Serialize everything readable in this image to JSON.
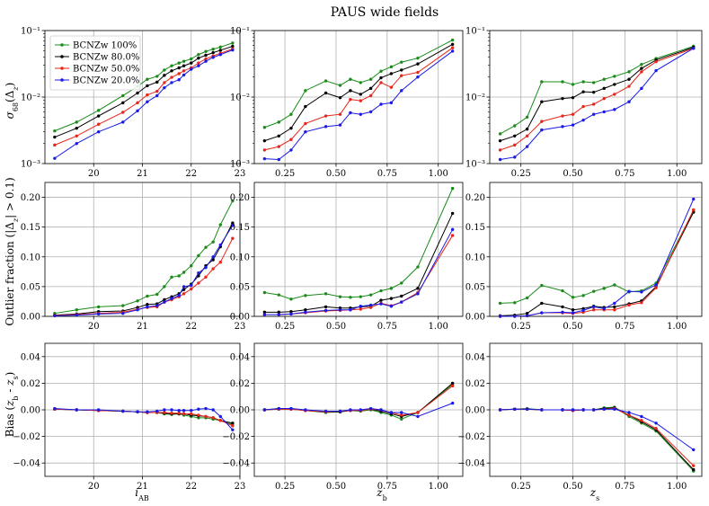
{
  "title": "PAUS wide fields",
  "colors": {
    "BCNZw 100%": "#1a8c1a",
    "BCNZw 80.0%": "#000000",
    "BCNZw 50.0%": "#e8251a",
    "BCNZw 20.0%": "#1a1ae8"
  },
  "legend": [
    "BCNZw 100%",
    "BCNZw 80.0%",
    "BCNZw 50.0%",
    "BCNZw 20.0%"
  ],
  "rows": {
    "sigma": {
      "ylabel": "σ68(Δz)",
      "ticks": [
        "10⁻³",
        "10⁻²",
        "10⁻¹"
      ]
    },
    "outlier": {
      "ylabel": "Outlier fraction (|Δz| > 0.1)",
      "ticks": [
        "0.00",
        "0.05",
        "0.10",
        "0.15",
        "0.20"
      ]
    },
    "bias": {
      "ylabel": "Bias (zb - zs)",
      "ticks": [
        "−0.04",
        "−0.02",
        "0.00",
        "0.02",
        "0.04"
      ]
    }
  },
  "cols": {
    "iab": {
      "xlabel": "iAB",
      "ticks": [
        "20",
        "21",
        "22",
        "23"
      ]
    },
    "zb": {
      "xlabel": "zb",
      "ticks": [
        "0.25",
        "0.50",
        "0.75",
        "1.00"
      ]
    },
    "zs": {
      "xlabel": "zs",
      "ticks": [
        "0.25",
        "0.50",
        "0.75",
        "1.00"
      ]
    }
  },
  "chart_data": [
    {
      "type": "line",
      "id": "sigma-iab",
      "xlim": [
        19,
        23
      ],
      "ylim": [
        0.001,
        0.1
      ],
      "yscale": "log",
      "x": [
        19.2,
        19.65,
        20.1,
        20.6,
        20.9,
        21.1,
        21.3,
        21.45,
        21.6,
        21.75,
        21.85,
        22.0,
        22.15,
        22.3,
        22.45,
        22.6,
        22.85
      ],
      "series": [
        {
          "name": "BCNZw 100%",
          "values": [
            0.0031,
            0.0042,
            0.0063,
            0.0105,
            0.0145,
            0.0185,
            0.0205,
            0.0255,
            0.0295,
            0.0325,
            0.0345,
            0.0375,
            0.0435,
            0.0485,
            0.0525,
            0.0565,
            0.065
          ]
        },
        {
          "name": "BCNZw 80.0%",
          "values": [
            0.0025,
            0.0034,
            0.0052,
            0.0082,
            0.0115,
            0.0148,
            0.0168,
            0.0212,
            0.0248,
            0.0275,
            0.0295,
            0.0325,
            0.0385,
            0.0425,
            0.0465,
            0.0505,
            0.058
          ]
        },
        {
          "name": "BCNZw 50.0%",
          "values": [
            0.0019,
            0.0026,
            0.0039,
            0.0059,
            0.0082,
            0.0108,
            0.0122,
            0.0165,
            0.0198,
            0.0225,
            0.0248,
            0.0275,
            0.0325,
            0.0375,
            0.0415,
            0.0455,
            0.053
          ]
        },
        {
          "name": "BCNZw 20.0%",
          "values": [
            0.0012,
            0.002,
            0.003,
            0.0042,
            0.0062,
            0.0085,
            0.0105,
            0.0138,
            0.0165,
            0.0182,
            0.0215,
            0.0262,
            0.0295,
            0.0345,
            0.0395,
            0.0435,
            0.051
          ]
        }
      ]
    },
    {
      "type": "line",
      "id": "sigma-zb",
      "xlim": [
        0.1,
        1.12
      ],
      "ylim": [
        0.001,
        0.1
      ],
      "yscale": "log",
      "x": [
        0.15,
        0.22,
        0.28,
        0.35,
        0.45,
        0.52,
        0.57,
        0.62,
        0.67,
        0.72,
        0.77,
        0.82,
        0.9,
        1.07
      ],
      "series": [
        {
          "name": "BCNZw 100%",
          "values": [
            0.0035,
            0.0042,
            0.0055,
            0.0125,
            0.0175,
            0.015,
            0.0185,
            0.0165,
            0.0185,
            0.0245,
            0.0285,
            0.0335,
            0.0385,
            0.072
          ]
        },
        {
          "name": "BCNZw 80.0%",
          "values": [
            0.0022,
            0.0026,
            0.0034,
            0.0072,
            0.0115,
            0.0098,
            0.0125,
            0.011,
            0.0135,
            0.0195,
            0.0225,
            0.0255,
            0.0315,
            0.062
          ]
        },
        {
          "name": "BCNZw 50.0%",
          "values": [
            0.0016,
            0.0018,
            0.0023,
            0.004,
            0.0052,
            0.0055,
            0.0092,
            0.0088,
            0.0105,
            0.0165,
            0.014,
            0.021,
            0.0235,
            0.055
          ]
        },
        {
          "name": "BCNZw 20.0%",
          "values": [
            0.00118,
            0.00115,
            0.0016,
            0.003,
            0.0036,
            0.0038,
            0.0058,
            0.0055,
            0.006,
            0.0078,
            0.0082,
            0.0125,
            0.02,
            0.049
          ]
        }
      ]
    },
    {
      "type": "line",
      "id": "sigma-zs",
      "xlim": [
        0.1,
        1.12
      ],
      "ylim": [
        0.001,
        0.1
      ],
      "yscale": "log",
      "x": [
        0.15,
        0.22,
        0.28,
        0.35,
        0.45,
        0.5,
        0.55,
        0.6,
        0.65,
        0.7,
        0.77,
        0.83,
        0.9,
        1.08
      ],
      "series": [
        {
          "name": "BCNZw 100%",
          "values": [
            0.0028,
            0.0037,
            0.005,
            0.017,
            0.017,
            0.0155,
            0.017,
            0.0165,
            0.0185,
            0.0205,
            0.024,
            0.031,
            0.038,
            0.058
          ]
        },
        {
          "name": "BCNZw 80.0%",
          "values": [
            0.0022,
            0.0026,
            0.0033,
            0.0085,
            0.0095,
            0.0098,
            0.012,
            0.0118,
            0.0135,
            0.0155,
            0.0185,
            0.027,
            0.036,
            0.056
          ]
        },
        {
          "name": "BCNZw 50.0%",
          "values": [
            0.0016,
            0.0019,
            0.0026,
            0.0043,
            0.0052,
            0.0055,
            0.0072,
            0.0078,
            0.0095,
            0.011,
            0.0145,
            0.024,
            0.034,
            0.054
          ]
        },
        {
          "name": "BCNZw 20.0%",
          "values": [
            0.00115,
            0.00125,
            0.0018,
            0.0032,
            0.0036,
            0.0038,
            0.0045,
            0.0055,
            0.006,
            0.0065,
            0.0085,
            0.0135,
            0.025,
            0.054
          ]
        }
      ]
    },
    {
      "type": "line",
      "id": "outlier-iab",
      "xlim": [
        19,
        23
      ],
      "ylim": [
        0,
        0.225
      ],
      "x": [
        19.2,
        19.65,
        20.1,
        20.6,
        20.9,
        21.1,
        21.3,
        21.45,
        21.6,
        21.75,
        21.85,
        22.0,
        22.15,
        22.3,
        22.45,
        22.6,
        22.85
      ],
      "series": [
        {
          "name": "BCNZw 100%",
          "values": [
            0.005,
            0.011,
            0.016,
            0.018,
            0.026,
            0.034,
            0.037,
            0.05,
            0.066,
            0.068,
            0.074,
            0.085,
            0.102,
            0.116,
            0.125,
            0.154,
            0.194
          ]
        },
        {
          "name": "BCNZw 80.0%",
          "values": [
            0.002,
            0.004,
            0.008,
            0.009,
            0.015,
            0.02,
            0.021,
            0.028,
            0.033,
            0.038,
            0.045,
            0.054,
            0.068,
            0.085,
            0.095,
            0.117,
            0.157
          ]
        },
        {
          "name": "BCNZw 50.0%",
          "values": [
            0.0015,
            0.003,
            0.005,
            0.007,
            0.012,
            0.015,
            0.016,
            0.024,
            0.028,
            0.033,
            0.038,
            0.046,
            0.056,
            0.066,
            0.08,
            0.091,
            0.131
          ]
        },
        {
          "name": "BCNZw 20.0%",
          "values": [
            0.001,
            0.002,
            0.004,
            0.005,
            0.011,
            0.016,
            0.018,
            0.024,
            0.03,
            0.035,
            0.05,
            0.052,
            0.073,
            0.082,
            0.1,
            0.12,
            0.153
          ]
        }
      ]
    },
    {
      "type": "line",
      "id": "outlier-zb",
      "xlim": [
        0.1,
        1.12
      ],
      "ylim": [
        0,
        0.225
      ],
      "x": [
        0.15,
        0.22,
        0.28,
        0.35,
        0.45,
        0.52,
        0.57,
        0.62,
        0.67,
        0.72,
        0.77,
        0.82,
        0.9,
        1.07
      ],
      "series": [
        {
          "name": "BCNZw 100%",
          "values": [
            0.04,
            0.036,
            0.029,
            0.035,
            0.038,
            0.033,
            0.032,
            0.033,
            0.036,
            0.043,
            0.047,
            0.056,
            0.083,
            0.215
          ]
        },
        {
          "name": "BCNZw 80.0%",
          "values": [
            0.007,
            0.007,
            0.008,
            0.011,
            0.016,
            0.014,
            0.014,
            0.016,
            0.017,
            0.027,
            0.03,
            0.034,
            0.047,
            0.173
          ]
        },
        {
          "name": "BCNZw 50.0%",
          "values": [
            0.003,
            0.003,
            0.004,
            0.006,
            0.009,
            0.01,
            0.011,
            0.012,
            0.015,
            0.022,
            0.018,
            0.024,
            0.04,
            0.136
          ]
        },
        {
          "name": "BCNZw 20.0%",
          "values": [
            0.003,
            0.003,
            0.004,
            0.007,
            0.01,
            0.011,
            0.011,
            0.017,
            0.019,
            0.021,
            0.017,
            0.024,
            0.038,
            0.146
          ]
        }
      ]
    },
    {
      "type": "line",
      "id": "outlier-zs",
      "xlim": [
        0.1,
        1.12
      ],
      "ylim": [
        0,
        0.225
      ],
      "x": [
        0.15,
        0.22,
        0.28,
        0.35,
        0.45,
        0.5,
        0.55,
        0.6,
        0.65,
        0.7,
        0.77,
        0.83,
        0.9,
        1.08
      ],
      "series": [
        {
          "name": "BCNZw 100%",
          "values": [
            0.022,
            0.023,
            0.031,
            0.052,
            0.043,
            0.032,
            0.035,
            0.042,
            0.047,
            0.053,
            0.041,
            0.043,
            0.056,
            0.177
          ]
        },
        {
          "name": "BCNZw 80.0%",
          "values": [
            0.001,
            0.002,
            0.005,
            0.022,
            0.016,
            0.011,
            0.013,
            0.017,
            0.015,
            0.016,
            0.021,
            0.026,
            0.05,
            0.175
          ]
        },
        {
          "name": "BCNZw 50.0%",
          "values": [
            0.0,
            0.0,
            0.001,
            0.006,
            0.006,
            0.005,
            0.007,
            0.011,
            0.011,
            0.011,
            0.019,
            0.023,
            0.048,
            0.179
          ]
        },
        {
          "name": "BCNZw 20.0%",
          "values": [
            0.0,
            0.0,
            0.001,
            0.006,
            0.007,
            0.006,
            0.01,
            0.016,
            0.013,
            0.022,
            0.042,
            0.041,
            0.053,
            0.197
          ]
        }
      ]
    },
    {
      "type": "line",
      "id": "bias-iab",
      "xlim": [
        19,
        23
      ],
      "ylim": [
        -0.05,
        0.05
      ],
      "x": [
        19.2,
        19.65,
        20.1,
        20.6,
        20.9,
        21.1,
        21.3,
        21.45,
        21.6,
        21.75,
        21.85,
        22.0,
        22.15,
        22.3,
        22.45,
        22.6,
        22.85
      ],
      "series": [
        {
          "name": "BCNZw 100%",
          "values": [
            0.0005,
            0.0,
            -0.0005,
            -0.001,
            -0.0015,
            -0.002,
            -0.002,
            -0.003,
            -0.0035,
            -0.003,
            -0.004,
            -0.005,
            -0.006,
            -0.006,
            -0.007,
            -0.008,
            -0.011
          ]
        },
        {
          "name": "BCNZw 80.0%",
          "values": [
            0.0005,
            0.0,
            -0.0005,
            -0.001,
            -0.0015,
            -0.002,
            -0.002,
            -0.0025,
            -0.003,
            -0.003,
            -0.003,
            -0.004,
            -0.0045,
            -0.005,
            -0.006,
            -0.008,
            -0.01
          ]
        },
        {
          "name": "BCNZw 50.0%",
          "values": [
            0.0005,
            0.0,
            -0.0005,
            -0.001,
            -0.0015,
            -0.002,
            -0.002,
            -0.002,
            -0.0025,
            -0.0025,
            -0.003,
            -0.003,
            -0.004,
            -0.005,
            -0.006,
            -0.008,
            -0.012
          ]
        },
        {
          "name": "BCNZw 20.0%",
          "values": [
            0.001,
            0.0,
            0.0,
            -0.001,
            -0.0015,
            -0.0015,
            -0.001,
            0.0,
            0.0,
            -0.0005,
            -0.0005,
            -0.0005,
            0.0005,
            0.001,
            0.0,
            -0.005,
            -0.015
          ]
        }
      ]
    },
    {
      "type": "line",
      "id": "bias-zb",
      "xlim": [
        0.1,
        1.12
      ],
      "ylim": [
        -0.05,
        0.05
      ],
      "x": [
        0.15,
        0.22,
        0.28,
        0.35,
        0.45,
        0.52,
        0.57,
        0.62,
        0.67,
        0.72,
        0.77,
        0.82,
        0.9,
        1.07
      ],
      "series": [
        {
          "name": "BCNZw 100%",
          "values": [
            0.0,
            0.001,
            0.001,
            -0.0005,
            -0.002,
            -0.0015,
            -0.0005,
            -0.001,
            0.0,
            -0.002,
            -0.004,
            -0.007,
            -0.002,
            0.019
          ]
        },
        {
          "name": "BCNZw 80.0%",
          "values": [
            0.0,
            0.0005,
            0.0005,
            -0.0005,
            -0.0015,
            -0.0015,
            -0.0005,
            -0.0005,
            0.0005,
            -0.001,
            -0.003,
            -0.005,
            -0.002,
            0.02
          ]
        },
        {
          "name": "BCNZw 50.0%",
          "values": [
            0.0,
            0.0005,
            0.0005,
            -0.0005,
            -0.0015,
            -0.001,
            -0.0005,
            -0.0005,
            0.0005,
            0.0,
            -0.002,
            -0.004,
            -0.002,
            0.018
          ]
        },
        {
          "name": "BCNZw 20.0%",
          "values": [
            0.0,
            0.001,
            0.001,
            0.0,
            -0.001,
            -0.001,
            0.0,
            0.0,
            0.001,
            0.0,
            -0.002,
            -0.002,
            -0.005,
            0.005
          ]
        }
      ]
    },
    {
      "type": "line",
      "id": "bias-zs",
      "xlim": [
        0.1,
        1.12
      ],
      "ylim": [
        -0.05,
        0.05
      ],
      "x": [
        0.15,
        0.22,
        0.28,
        0.35,
        0.45,
        0.5,
        0.55,
        0.6,
        0.65,
        0.7,
        0.77,
        0.83,
        0.9,
        1.08
      ],
      "series": [
        {
          "name": "BCNZw 100%",
          "values": [
            0.0,
            0.0005,
            0.001,
            0.0,
            0.0,
            0.0,
            0.0,
            0.0,
            0.0015,
            0.002,
            -0.005,
            -0.01,
            -0.016,
            -0.046
          ]
        },
        {
          "name": "BCNZw 80.0%",
          "values": [
            0.0,
            0.0005,
            0.0005,
            0.0,
            0.0,
            -0.0005,
            0.0,
            0.0,
            0.001,
            0.0015,
            -0.004,
            -0.009,
            -0.015,
            -0.045
          ]
        },
        {
          "name": "BCNZw 50.0%",
          "values": [
            0.0,
            0.0005,
            0.0005,
            0.0,
            0.0,
            -0.0005,
            0.0,
            0.0,
            0.0005,
            0.001,
            -0.004,
            -0.008,
            -0.014,
            -0.042
          ]
        },
        {
          "name": "BCNZw 20.0%",
          "values": [
            0.0,
            0.0005,
            0.0005,
            0.0,
            0.0,
            0.0,
            0.0,
            0.0,
            0.0005,
            0.0005,
            -0.002,
            -0.005,
            -0.01,
            -0.03
          ]
        }
      ]
    }
  ]
}
